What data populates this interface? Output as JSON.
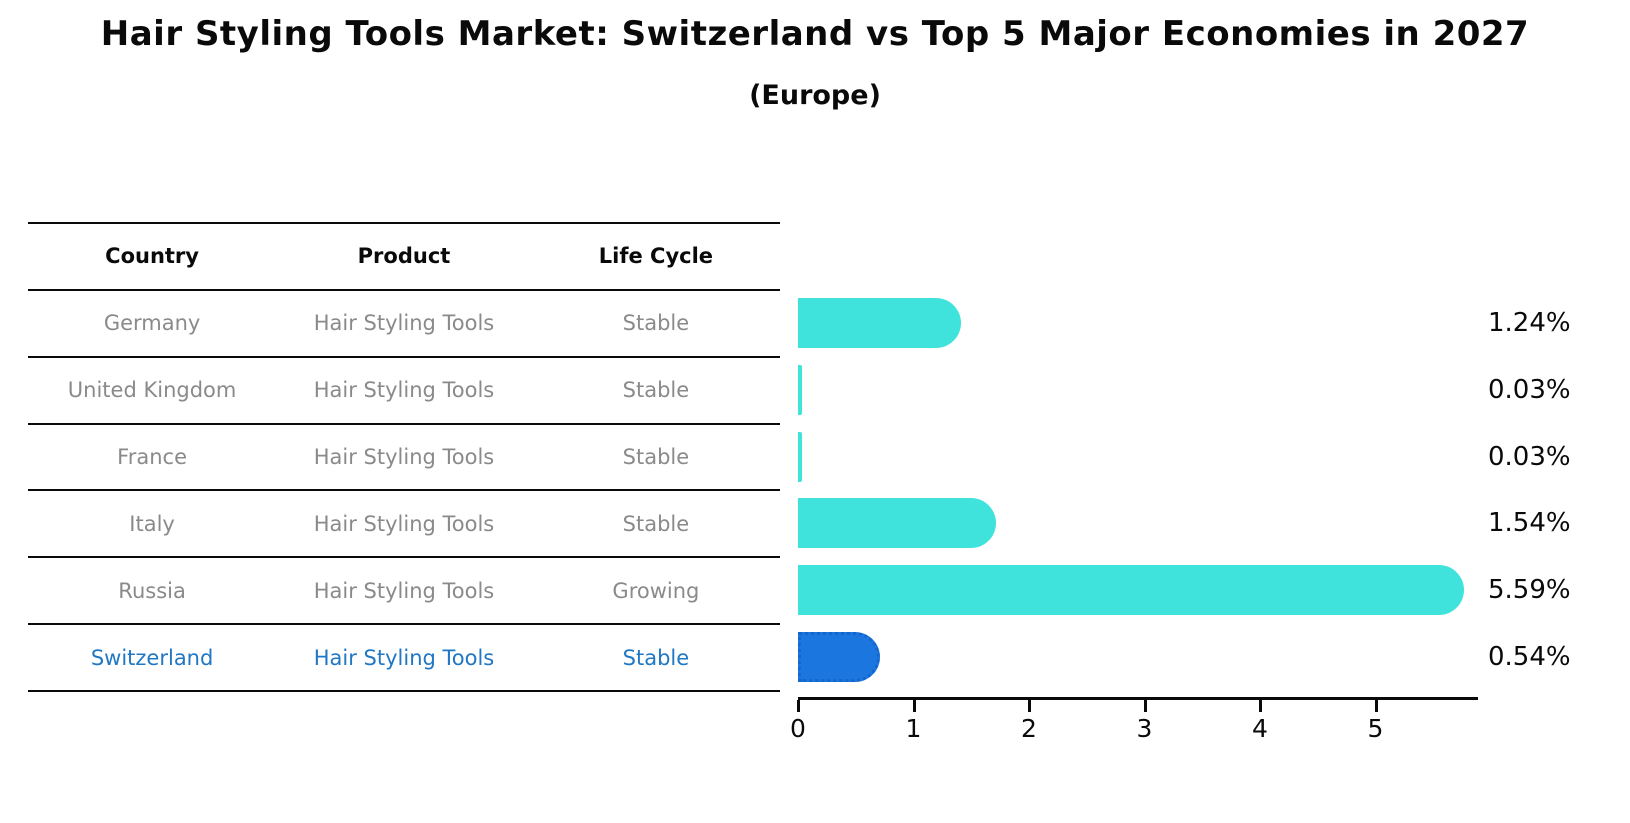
{
  "title": "Hair Styling Tools Market: Switzerland vs Top 5 Major Economies in 2027",
  "subtitle": "(Europe)",
  "table": {
    "headers": [
      "Country",
      "Product",
      "Life Cycle"
    ],
    "rows": [
      {
        "country": "Germany",
        "product": "Hair Styling Tools",
        "life_cycle": "Stable",
        "highlight": false
      },
      {
        "country": "United Kingdom",
        "product": "Hair Styling Tools",
        "life_cycle": "Stable",
        "highlight": false
      },
      {
        "country": "France",
        "product": "Hair Styling Tools",
        "life_cycle": "Stable",
        "highlight": false
      },
      {
        "country": "Italy",
        "product": "Hair Styling Tools",
        "life_cycle": "Stable",
        "highlight": false
      },
      {
        "country": "Russia",
        "product": "Hair Styling Tools",
        "life_cycle": "Growing",
        "highlight": false
      },
      {
        "country": "Switzerland",
        "product": "Hair Styling Tools",
        "life_cycle": "Stable",
        "highlight": true
      }
    ]
  },
  "chart_data": {
    "type": "bar",
    "orientation": "horizontal",
    "title": "Hair Styling Tools Market: Switzerland vs Top 5 Major Economies in 2027 (Europe)",
    "categories": [
      "Germany",
      "United Kingdom",
      "France",
      "Italy",
      "Russia",
      "Switzerland"
    ],
    "values": [
      1.24,
      0.03,
      0.03,
      1.54,
      5.59,
      0.54
    ],
    "value_labels": [
      "1.24%",
      "0.03%",
      "0.03%",
      "1.54%",
      "5.59%",
      "0.54%"
    ],
    "xlabel": "",
    "ylabel": "",
    "xlim": [
      0,
      5.88
    ],
    "xticks": [
      "0",
      "1",
      "2",
      "3",
      "4",
      "5"
    ],
    "grid": false,
    "legend": false,
    "bar_color": "#3FE3DC",
    "highlight_index": 5,
    "highlight_color": "#1C76E0",
    "highlight_border_color": "#1366CC"
  },
  "colors": {
    "row_text_gray": "#8a8a8a",
    "highlight_text_blue": "#2077c4",
    "axis_black": "#0a0a0a"
  }
}
